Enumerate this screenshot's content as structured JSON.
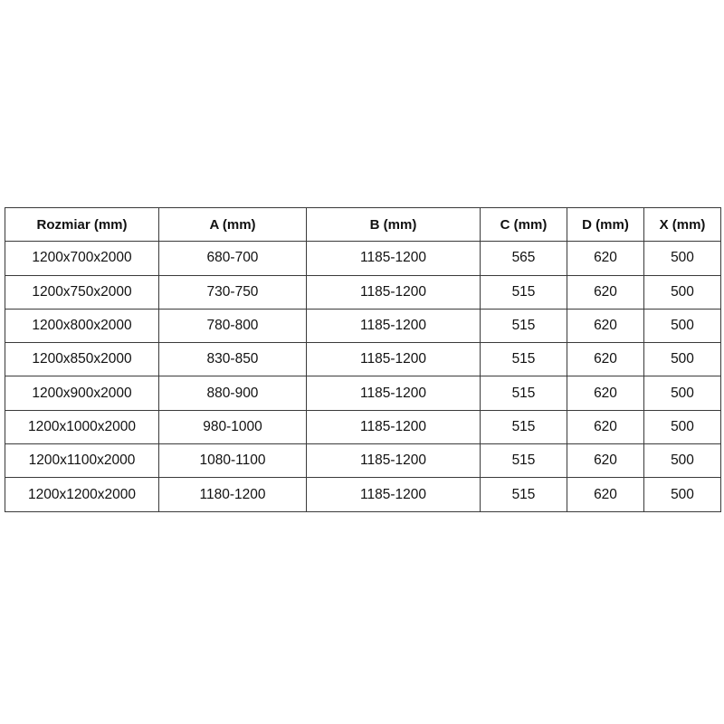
{
  "table": {
    "headers": [
      "Rozmiar (mm)",
      "A (mm)",
      "B (mm)",
      "C (mm)",
      "D (mm)",
      "X (mm)"
    ],
    "rows": [
      [
        "1200x700x2000",
        "680-700",
        "1185-1200",
        "565",
        "620",
        "500"
      ],
      [
        "1200x750x2000",
        "730-750",
        "1185-1200",
        "515",
        "620",
        "500"
      ],
      [
        "1200x800x2000",
        "780-800",
        "1185-1200",
        "515",
        "620",
        "500"
      ],
      [
        "1200x850x2000",
        "830-850",
        "1185-1200",
        "515",
        "620",
        "500"
      ],
      [
        "1200x900x2000",
        "880-900",
        "1185-1200",
        "515",
        "620",
        "500"
      ],
      [
        "1200x1000x2000",
        "980-1000",
        "1185-1200",
        "515",
        "620",
        "500"
      ],
      [
        "1200x1100x2000",
        "1080-1100",
        "1185-1200",
        "515",
        "620",
        "500"
      ],
      [
        "1200x1200x2000",
        "1180-1200",
        "1185-1200",
        "515",
        "620",
        "500"
      ]
    ]
  }
}
